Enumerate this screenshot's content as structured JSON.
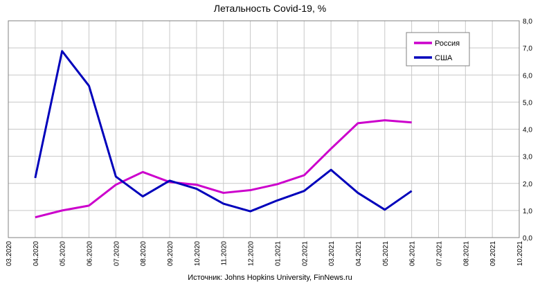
{
  "chart_data": {
    "type": "line",
    "title": "Летальность Covid-19, %",
    "source": "Источник: Johns Hopkins University, FinNews.ru",
    "categories": [
      "03.2020",
      "04.2020",
      "05.2020",
      "06.2020",
      "07.2020",
      "08.2020",
      "09.2020",
      "10.2020",
      "11.2020",
      "12.2020",
      "01.2021",
      "02.2021",
      "03.2021",
      "04.2021",
      "05.2021",
      "06.2021",
      "07.2021",
      "08.2021",
      "09.2021",
      "10.2021"
    ],
    "ylim": [
      0,
      8
    ],
    "yticks": [
      "0,0",
      "1,0",
      "2,0",
      "3,0",
      "4,0",
      "5,0",
      "6,0",
      "7,0",
      "8,0"
    ],
    "y_axis_side": "right",
    "grid": true,
    "legend_placement": "top-right",
    "series": [
      {
        "name": "Россия",
        "color": "#cc00cc",
        "values": [
          null,
          0.75,
          1.0,
          1.18,
          1.95,
          2.42,
          2.05,
          1.95,
          1.65,
          1.75,
          1.97,
          2.3,
          3.28,
          4.22,
          4.33,
          4.25,
          null,
          null,
          null,
          null
        ]
      },
      {
        "name": "США",
        "color": "#0000bb",
        "values": [
          null,
          2.2,
          6.88,
          5.6,
          2.25,
          1.52,
          2.1,
          1.8,
          1.25,
          0.97,
          1.37,
          1.72,
          2.5,
          1.65,
          1.03,
          1.72,
          null,
          null,
          null,
          null
        ]
      }
    ]
  }
}
